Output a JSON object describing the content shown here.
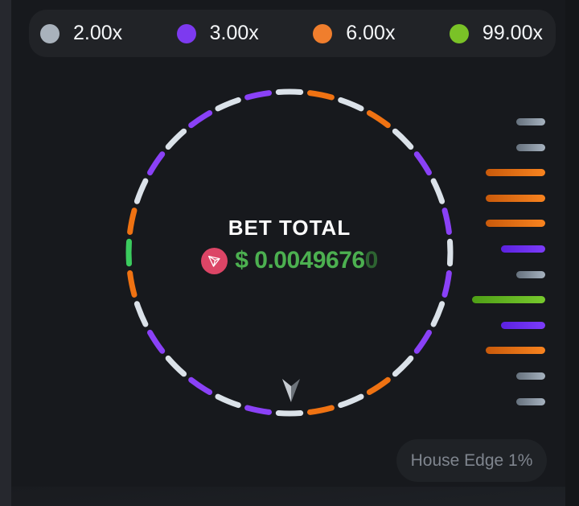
{
  "legend": {
    "items": [
      {
        "label": "2.00x",
        "key": "2x",
        "dot_color": "#a9b2bc"
      },
      {
        "label": "3.00x",
        "key": "3x",
        "dot_color": "#7d3af0"
      },
      {
        "label": "6.00x",
        "key": "6x",
        "dot_color": "#f07e2d"
      },
      {
        "label": "99.00x",
        "key": "99x",
        "dot_color": "#7ac227"
      }
    ]
  },
  "wheel": {
    "bet_total_label": "BET TOTAL",
    "bet_amount": "$ 0.0049676",
    "bet_amount_trailing": "0",
    "currency_icon": "tron-icon",
    "pointer_icon": "down-arrow-icon",
    "segment_colors": {
      "2x": "#dbe2e9",
      "3x": "#8a41f7",
      "6x": "#ef7212",
      "99x": "#3bcb5e"
    },
    "segments": [
      "2x",
      "6x",
      "2x",
      "6x",
      "2x",
      "3x",
      "2x",
      "3x",
      "2x",
      "3x",
      "2x",
      "3x",
      "2x",
      "6x",
      "2x",
      "6x",
      "2x",
      "3x",
      "2x",
      "3x",
      "2x",
      "3x",
      "2x",
      "6x",
      "99x",
      "6x",
      "2x",
      "3x",
      "2x",
      "3x",
      "2x",
      "3x"
    ]
  },
  "history": {
    "bars": [
      "2x",
      "2x",
      "6x",
      "6x",
      "6x",
      "3x",
      "2x",
      "99x",
      "3x",
      "6x",
      "2x",
      "2x"
    ],
    "bar_colors": {
      "2x": [
        "#66717d",
        "#a6b2bf"
      ],
      "3x": [
        "#5b21e0",
        "#7c3cfa"
      ],
      "6x": [
        "#c95a0b",
        "#f8831f"
      ],
      "99x": [
        "#4f9f16",
        "#77c92d"
      ]
    },
    "bar_widths": {
      "2x": 36,
      "3x": 55,
      "6x": 74,
      "99x": 91
    }
  },
  "footer": {
    "house_edge": "House Edge 1%"
  }
}
